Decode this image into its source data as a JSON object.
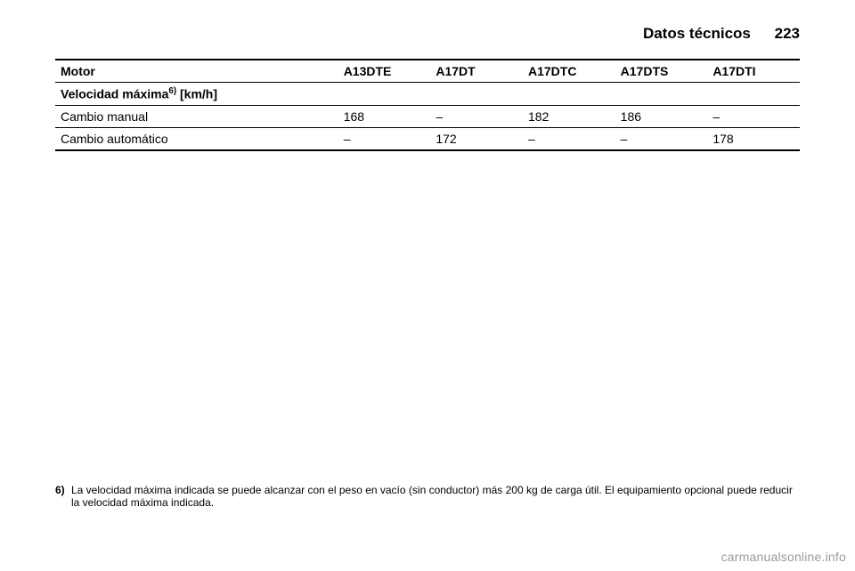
{
  "header": {
    "section_title": "Datos técnicos",
    "page_number": "223"
  },
  "table": {
    "columns": [
      "Motor",
      "A13DTE",
      "A17DT",
      "A17DTC",
      "A17DTS",
      "A17DTI"
    ],
    "subheader_html": "Velocidad máxima<sup>6)</sup> [km/h]",
    "rows": [
      {
        "label": "Cambio manual",
        "values": [
          "168",
          "–",
          "182",
          "186",
          "–"
        ]
      },
      {
        "label": "Cambio automático",
        "values": [
          "–",
          "172",
          "–",
          "–",
          "178"
        ]
      }
    ]
  },
  "footnote": {
    "marker": "6)",
    "text": "La velocidad máxima indicada se puede alcanzar con el peso en vacío (sin conductor) más 200 kg de carga útil. El equipamiento opcional puede reducir la velocidad máxima indicada."
  },
  "watermark": "carmanualsonline.info"
}
